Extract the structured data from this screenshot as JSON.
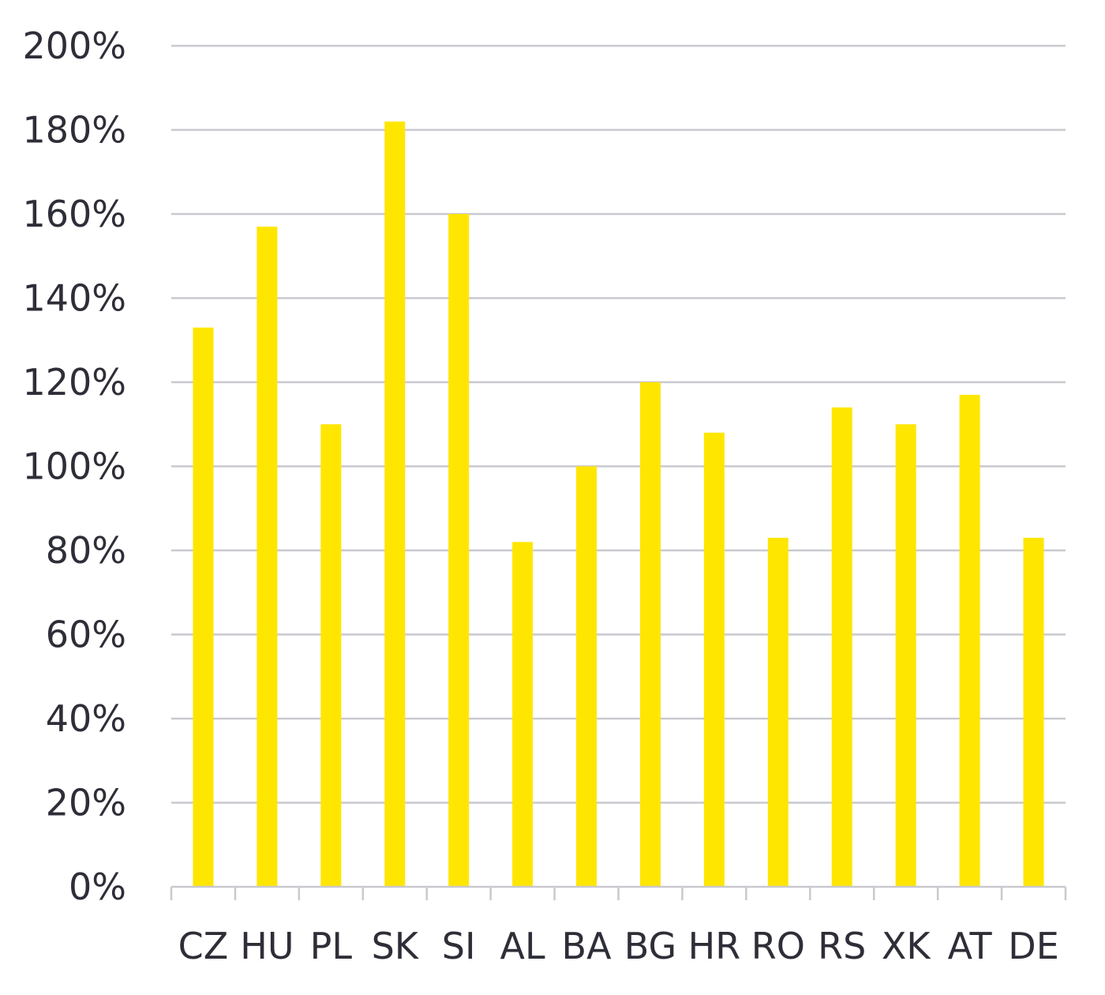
{
  "colors": {
    "bar": "#ffe600",
    "gridline": "#c9c9cf",
    "text": "#2e2e38"
  },
  "chart_data": {
    "type": "bar",
    "title": "",
    "xlabel": "",
    "ylabel": "",
    "categories": [
      "CZ",
      "HU",
      "PL",
      "SK",
      "SI",
      "AL",
      "BA",
      "BG",
      "HR",
      "RO",
      "RS",
      "XK",
      "AT",
      "DE"
    ],
    "values": [
      133,
      157,
      110,
      182,
      160,
      82,
      100,
      120,
      108,
      83,
      114,
      110,
      117,
      83
    ],
    "value_unit": "percent",
    "ylim": [
      0,
      200
    ],
    "yticks": [
      0,
      20,
      40,
      60,
      80,
      100,
      120,
      140,
      160,
      180,
      200
    ],
    "ytick_labels": [
      "0%",
      "20%",
      "40%",
      "60%",
      "80%",
      "100%",
      "120%",
      "140%",
      "160%",
      "180%",
      "200%"
    ],
    "grid": true,
    "legend": "none"
  }
}
